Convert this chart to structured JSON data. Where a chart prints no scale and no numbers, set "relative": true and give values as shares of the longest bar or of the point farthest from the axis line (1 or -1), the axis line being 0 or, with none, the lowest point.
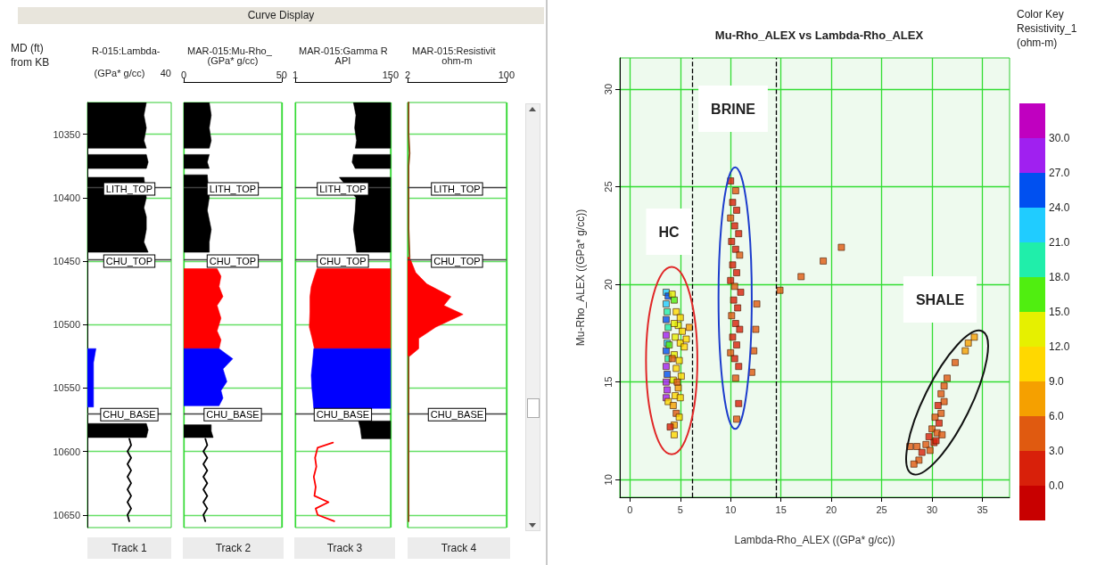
{
  "chart_data": [
    {
      "type": "line",
      "orientation": "horizontal",
      "relative": true,
      "title": "R-015:Lambda-",
      "xlabel": "(GPa* g/cc)",
      "ylabel": "MD (ft) from KB",
      "annotations": [
        "Curve Display",
        "40",
        "Track 1"
      ],
      "ylim": [
        10660,
        10325
      ],
      "yticks": [
        10350,
        10400,
        10450,
        10500,
        10550,
        10600,
        10650
      ],
      "grid": true,
      "ref_lines": [
        {
          "axis": "y",
          "value": 10392,
          "label": "LITH_TOP",
          "color": "#404040"
        },
        {
          "axis": "y",
          "value": 10449,
          "label": "CHU_TOP",
          "color": "#404040"
        },
        {
          "axis": "y",
          "value": 10570,
          "label": "CHU_BASE",
          "color": "#404040"
        }
      ],
      "series": [
        {
          "type": "area",
          "color": "#000000",
          "x": [
            10325,
            10335,
            10345,
            10355,
            10361
          ],
          "values": [
            0.97,
            0.93,
            0.97,
            0.93,
            0.97
          ]
        },
        {
          "type": "area",
          "color": "#000000",
          "x": [
            10366,
            10372,
            10377
          ],
          "values": [
            0.97,
            1,
            0.97
          ]
        },
        {
          "type": "area",
          "color": "#000000",
          "x": [
            10384,
            10400,
            10408,
            10415,
            10425,
            10435,
            10443
          ],
          "values": [
            0.93,
            0.97,
            0.93,
            0.97,
            0.97,
            0.93,
            1
          ]
        },
        {
          "type": "area",
          "color": "#0000ff",
          "x": [
            10519,
            10530,
            10545,
            10560,
            10565
          ],
          "values": [
            0.14,
            0.1,
            0.1,
            0.1,
            0.1
          ]
        },
        {
          "type": "area",
          "color": "#000000",
          "x": [
            10578,
            10583,
            10589
          ],
          "values": [
            0.97,
            1,
            0.97
          ]
        },
        {
          "type": "line",
          "color": "#000000",
          "x": [
            10590,
            10595,
            10600,
            10605,
            10610,
            10615,
            10620,
            10625,
            10630,
            10635,
            10640,
            10645,
            10650,
            10655
          ],
          "values": [
            0.69,
            0.72,
            0.66,
            0.72,
            0.66,
            0.72,
            0.66,
            0.72,
            0.66,
            0.72,
            0.66,
            0.72,
            0.66,
            0.69
          ]
        }
      ]
    },
    {
      "type": "line",
      "orientation": "horizontal",
      "title": "MAR-015:Mu-Rho_",
      "xlabel": "(GPa* g/cc)",
      "annotations": [
        "Track 2"
      ],
      "xlim": [
        0,
        50
      ],
      "xticks": [
        0,
        50
      ],
      "ylim": [
        10660,
        10325
      ],
      "yticks": [
        10350,
        10400,
        10450,
        10500,
        10550,
        10600,
        10650
      ],
      "grid": true,
      "tick_labels": "x",
      "ref_lines": [
        {
          "axis": "y",
          "value": 10392,
          "label": "LITH_TOP",
          "color": "#404040"
        },
        {
          "axis": "y",
          "value": 10449,
          "label": "CHU_TOP",
          "color": "#404040"
        },
        {
          "axis": "y",
          "value": 10570,
          "label": "CHU_BASE",
          "color": "#404040"
        }
      ],
      "series": [
        {
          "type": "area",
          "color": "#000000",
          "x": [
            10325,
            10335,
            10345,
            10355,
            10361
          ],
          "values": [
            13,
            14,
            13,
            14,
            13
          ]
        },
        {
          "type": "area",
          "color": "#000000",
          "x": [
            10366,
            10372,
            10377
          ],
          "values": [
            13,
            12,
            13
          ]
        },
        {
          "type": "area",
          "color": "#000000",
          "x": [
            10382,
            10400,
            10410,
            10425,
            10435,
            10443
          ],
          "values": [
            12,
            13,
            12,
            14,
            13,
            13
          ]
        },
        {
          "type": "area",
          "color": "#ff0000",
          "x": [
            10456,
            10462,
            10470,
            10478,
            10485,
            10495,
            10505,
            10512,
            10519
          ],
          "values": [
            17,
            19,
            18,
            20,
            17,
            19,
            17,
            19,
            18
          ]
        },
        {
          "type": "area",
          "color": "#0000ff",
          "x": [
            10519,
            10527,
            10535,
            10545,
            10552,
            10558,
            10564
          ],
          "values": [
            18,
            25,
            20,
            22,
            19,
            20,
            18
          ]
        },
        {
          "type": "area",
          "color": "#000000",
          "x": [
            10579,
            10584,
            10589
          ],
          "values": [
            14,
            14,
            15
          ]
        },
        {
          "type": "line",
          "color": "#000000",
          "x": [
            10590,
            10595,
            10600,
            10605,
            10610,
            10615,
            10620,
            10625,
            10630,
            10635,
            10640,
            10645,
            10650,
            10655
          ],
          "values": [
            11,
            12,
            10,
            12,
            10,
            12,
            10,
            12,
            10,
            12,
            10,
            12,
            10,
            11
          ]
        }
      ]
    },
    {
      "type": "line",
      "orientation": "horizontal",
      "title": "MAR-015:Gamma R",
      "xlabel": "API",
      "annotations": [
        "Track 3"
      ],
      "xlim": [
        1,
        150
      ],
      "xticks": [
        1,
        150
      ],
      "ylim": [
        10660,
        10325
      ],
      "yticks": [
        10350,
        10400,
        10450,
        10500,
        10550,
        10600,
        10650
      ],
      "grid": true,
      "tick_labels": "x",
      "ref_lines": [
        {
          "axis": "y",
          "value": 10392,
          "label": "LITH_TOP",
          "color": "#404040"
        },
        {
          "axis": "y",
          "value": 10449,
          "label": "CHU_TOP",
          "color": "#404040"
        },
        {
          "axis": "y",
          "value": 10570,
          "label": "CHU_BASE",
          "color": "#404040"
        }
      ],
      "series": [
        {
          "type": "line",
          "color": "#000000",
          "x": [
            10325,
            10335,
            10345,
            10355,
            10361
          ],
          "values": [
            null,
            null,
            null,
            null,
            null
          ],
          "lower": [
            92,
            96,
            94,
            97,
            95
          ],
          "upper": [
            150,
            150,
            150,
            150,
            150
          ]
        },
        {
          "type": "line",
          "color": "#000000",
          "x": [
            10366,
            10372,
            10377
          ],
          "values": [
            null,
            null,
            null
          ],
          "lower": [
            92,
            90,
            95
          ],
          "upper": [
            150,
            150,
            150
          ]
        },
        {
          "type": "line",
          "color": "#000000",
          "x": [
            10384,
            10400,
            10410,
            10425,
            10435,
            10443
          ],
          "values": [
            null,
            null,
            null,
            null,
            null,
            null
          ],
          "lower": [
            70,
            96,
            95,
            92,
            95,
            97
          ],
          "upper": [
            150,
            150,
            150,
            150,
            150,
            150
          ]
        },
        {
          "type": "line",
          "color": "#ff0000",
          "x": [
            10456,
            10462,
            10470,
            10478,
            10490,
            10502,
            10510,
            10519
          ],
          "values": [
            null,
            null,
            null,
            null,
            null,
            null,
            null,
            null
          ],
          "lower": [
            35,
            31,
            26,
            24,
            24,
            23,
            27,
            31
          ],
          "upper": [
            150,
            150,
            150,
            150,
            150,
            150,
            150,
            150
          ]
        },
        {
          "type": "line",
          "color": "#0000ff",
          "x": [
            10519,
            10530,
            10540,
            10550,
            10560,
            10566
          ],
          "values": [
            null,
            null,
            null,
            null,
            null,
            null
          ],
          "lower": [
            30,
            28,
            26,
            27,
            29,
            30
          ],
          "upper": [
            150,
            150,
            150,
            150,
            150,
            150
          ]
        },
        {
          "type": "line",
          "color": "#000000",
          "x": [
            10576,
            10582,
            10590
          ],
          "values": [
            null,
            null,
            null
          ],
          "lower": [
            100,
            103,
            105
          ],
          "upper": [
            150,
            150,
            150
          ]
        },
        {
          "type": "line",
          "color": "#ff0000",
          "x": [
            10593,
            10597,
            10605,
            10612,
            10620,
            10628,
            10635,
            10640,
            10645,
            10650,
            10655
          ],
          "values": [
            60,
            36,
            32,
            34,
            30,
            33,
            31,
            53,
            33,
            36,
            62
          ]
        }
      ]
    },
    {
      "type": "line",
      "orientation": "horizontal",
      "title": "MAR-015:Resistivit",
      "xlabel": "ohm-m",
      "annotations": [
        "Track 4"
      ],
      "xlim": [
        2,
        100
      ],
      "xticks": [
        2,
        100
      ],
      "ylim": [
        10660,
        10325
      ],
      "yticks": [
        10350,
        10400,
        10450,
        10500,
        10550,
        10600,
        10650
      ],
      "grid": true,
      "tick_labels": "x",
      "ref_lines": [
        {
          "axis": "y",
          "value": 10392,
          "label": "LITH_TOP",
          "color": "#404040"
        },
        {
          "axis": "y",
          "value": 10449,
          "label": "CHU_TOP",
          "color": "#404040"
        },
        {
          "axis": "y",
          "value": 10570,
          "label": "CHU_BASE",
          "color": "#404040"
        }
      ],
      "series": [
        {
          "type": "line",
          "color": "#8b4513",
          "x": [
            10325,
            10350,
            10365,
            10375,
            10400,
            10425,
            10447
          ],
          "values": [
            3,
            3,
            4,
            3,
            3,
            3,
            4
          ]
        },
        {
          "type": "area",
          "color": "#ff0000",
          "x": [
            10447,
            10459,
            10468,
            10478,
            10485,
            10492,
            10502,
            10511,
            10519,
            10525
          ],
          "values": [
            4,
            10,
            21,
            45,
            38,
            57,
            30,
            13,
            13,
            4
          ]
        },
        {
          "type": "line",
          "color": "#8b4513",
          "x": [
            10525,
            10560,
            10600,
            10655
          ],
          "values": [
            3,
            3,
            3,
            3
          ]
        }
      ]
    },
    {
      "type": "scatter",
      "title": "Mu-Rho_ALEX vs Lambda-Rho_ALEX",
      "xlabel": "Lambda-Rho_ALEX ((GPa* g/cc))",
      "ylabel": "Mu-Rho_ALEX ((GPa* g/cc))",
      "clabel": "Color Key Resistivity_1 (ohm-m)",
      "xlim": [
        -1,
        37.7
      ],
      "xticks": [
        0,
        5,
        10,
        15,
        20,
        25,
        30,
        35
      ],
      "ylim": [
        9.1,
        31.6
      ],
      "yticks": [
        10,
        15,
        20,
        25,
        30
      ],
      "grid": true,
      "marker": "square",
      "clim": [
        -3,
        33
      ],
      "cticks": [
        {
          "value": 0,
          "label": "0.0"
        },
        {
          "value": 3,
          "label": "3.0"
        },
        {
          "value": 6,
          "label": "6.0"
        },
        {
          "value": 9,
          "label": "9.0"
        },
        {
          "value": 12,
          "label": "12.0"
        },
        {
          "value": 15,
          "label": "15.0"
        },
        {
          "value": 18,
          "label": "18.0"
        },
        {
          "value": 21,
          "label": "21.0"
        },
        {
          "value": 24,
          "label": "24.0"
        },
        {
          "value": 27,
          "label": "27.0"
        },
        {
          "value": 30,
          "label": "30.0"
        }
      ],
      "annotations": [
        "HC",
        "BRINE",
        "SHALE"
      ],
      "ref_lines": [
        {
          "axis": "x",
          "value": 6.2,
          "color": "#000000",
          "line_style": "dashed"
        },
        {
          "axis": "x",
          "value": 14.5,
          "color": "#000000",
          "line_style": "dashed"
        }
      ],
      "x": [
        3.6,
        3.8,
        3.6,
        3.7,
        3.6,
        3.8,
        3.6,
        3.7,
        3.6,
        3.8,
        3.6,
        3.7,
        3.6,
        3.7,
        3.6,
        3.8,
        4.2,
        4.4,
        4.6,
        5.0,
        4.8,
        5.2,
        4.5,
        5.0,
        5.4,
        4.4,
        4.9,
        4.6,
        5.1,
        4.3,
        4.8,
        4.5,
        5.0,
        4.3,
        4.6,
        4.9,
        4.4,
        4.0,
        4.4,
        5.9,
        5.6,
        4.4,
        3.9,
        4.2,
        4.7,
        10.0,
        10.5,
        10.2,
        10.6,
        10.0,
        10.4,
        10.8,
        10.1,
        10.5,
        10.9,
        10.2,
        10.6,
        10.0,
        10.4,
        11.0,
        10.3,
        10.7,
        10.1,
        10.5,
        10.9,
        10.2,
        10.6,
        10.0,
        10.4,
        10.8,
        10.5,
        10.8,
        10.6,
        12.6,
        12.5,
        12.3,
        12.1,
        14.9,
        17.0,
        19.2,
        21.0,
        34.2,
        33.6,
        33.3,
        32.3,
        31.5,
        31.2,
        30.9,
        31.2,
        30.6,
        30.9,
        30.3,
        30.7,
        30.0,
        30.5,
        29.7,
        31.0,
        29.4,
        30.2,
        28.5,
        27.8,
        29.0,
        28.7,
        28.2,
        29.8,
        30.4
      ],
      "values": [
        19.6,
        19.4,
        19.0,
        18.6,
        18.2,
        17.8,
        17.4,
        17.0,
        16.6,
        16.2,
        15.8,
        15.4,
        15.0,
        14.6,
        14.2,
        14.0,
        19.5,
        19.2,
        18.6,
        18.3,
        17.9,
        17.6,
        17.3,
        17.0,
        16.8,
        16.4,
        16.1,
        15.7,
        15.3,
        15.1,
        14.7,
        14.3,
        14.2,
        13.8,
        13.4,
        13.2,
        12.8,
        12.7,
        12.3,
        17.8,
        17.2,
        18.0,
        16.9,
        16.2,
        15.0,
        25.3,
        24.8,
        24.2,
        23.8,
        23.4,
        23.0,
        22.6,
        22.2,
        21.8,
        21.5,
        21.0,
        20.6,
        20.2,
        19.9,
        19.6,
        19.2,
        18.8,
        18.4,
        18.0,
        17.7,
        17.3,
        16.9,
        16.5,
        16.2,
        15.8,
        15.2,
        13.9,
        13.1,
        19.0,
        17.7,
        16.6,
        15.5,
        19.7,
        20.4,
        21.2,
        21.9,
        17.3,
        17.0,
        16.6,
        16.0,
        15.2,
        14.8,
        14.4,
        14.0,
        13.8,
        13.4,
        13.2,
        12.9,
        12.6,
        12.4,
        12.2,
        12.3,
        11.8,
        11.9,
        11.7,
        11.7,
        11.4,
        11.0,
        10.8,
        11.5,
        12.0
      ],
      "cvalues": [
        21,
        24,
        22,
        19,
        24,
        20,
        27,
        22,
        25,
        19,
        28,
        26,
        29,
        28,
        27,
        10,
        13,
        16,
        11,
        11,
        12,
        10,
        13,
        11,
        10,
        12,
        10,
        9.5,
        10,
        13,
        8,
        11,
        9.5,
        7,
        5,
        9.5,
        6,
        1,
        10,
        7,
        9.5,
        14,
        16,
        4,
        5,
        2,
        3,
        1,
        2,
        3,
        1,
        2,
        2,
        1,
        3,
        2,
        1,
        2,
        3,
        2,
        1,
        2,
        3,
        1,
        2,
        2,
        1,
        3,
        2,
        1,
        3,
        2,
        4,
        4,
        5,
        5,
        4,
        5,
        4,
        3,
        3,
        6,
        6,
        6,
        5,
        4,
        3,
        4,
        3,
        2,
        3,
        4,
        2,
        3,
        4,
        2,
        3,
        3,
        2,
        4,
        3,
        2,
        3,
        4,
        3,
        2
      ]
    }
  ]
}
